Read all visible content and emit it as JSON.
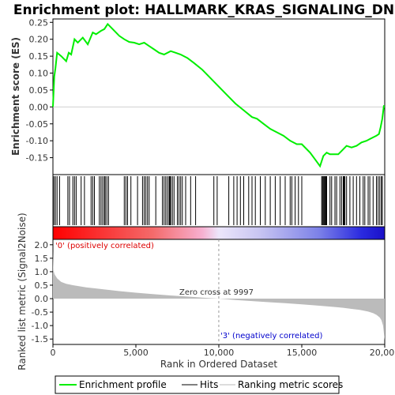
{
  "title": "Enrichment plot: HALLMARK_KRAS_SIGNALING_DN",
  "colors": {
    "es_line": "#00ee00",
    "hits": "#000000",
    "metric_fill": "#bbbbbb",
    "pos_label": "#dd0000",
    "neg_label": "#0000cc",
    "zero_line": "#999999"
  },
  "chart_data": [
    {
      "type": "line",
      "panel": "enrichment_profile",
      "ylabel": "Enrichment score (ES)",
      "xlim": [
        0,
        20000
      ],
      "ylim": [
        -0.2,
        0.26
      ],
      "yticks": [
        0.25,
        0.2,
        0.15,
        0.1,
        0.05,
        0.0,
        -0.05,
        -0.1,
        -0.15
      ],
      "yticklabels": [
        "0.25",
        "0.20",
        "0.15",
        "0.10",
        "0.05",
        "0.00",
        "-0.05",
        "-0.10",
        "-0.15"
      ],
      "series": [
        {
          "name": "Enrichment profile",
          "x": [
            0,
            80,
            150,
            250,
            500,
            800,
            950,
            1100,
            1300,
            1500,
            1800,
            2100,
            2400,
            2600,
            2900,
            3100,
            3300,
            3600,
            4000,
            4300,
            4600,
            4900,
            5200,
            5500,
            5800,
            6100,
            6400,
            6700,
            7100,
            7400,
            7700,
            8100,
            8500,
            9000,
            9500,
            10000,
            10500,
            11000,
            11500,
            12000,
            12300,
            12700,
            13100,
            13500,
            13900,
            14300,
            14700,
            15000,
            15500,
            15800,
            16100,
            16300,
            16500,
            16700,
            16900,
            17200,
            17500,
            17700,
            18000,
            18300,
            18600,
            18900,
            19100,
            19300,
            19500,
            19650,
            19750,
            19850,
            19950
          ],
          "y": [
            0.0,
            0.09,
            0.115,
            0.16,
            0.15,
            0.135,
            0.16,
            0.155,
            0.2,
            0.19,
            0.205,
            0.185,
            0.22,
            0.215,
            0.225,
            0.23,
            0.245,
            0.23,
            0.21,
            0.2,
            0.192,
            0.19,
            0.185,
            0.19,
            0.18,
            0.17,
            0.16,
            0.155,
            0.165,
            0.16,
            0.155,
            0.145,
            0.13,
            0.11,
            0.085,
            0.06,
            0.035,
            0.01,
            -0.01,
            -0.03,
            -0.035,
            -0.05,
            -0.065,
            -0.075,
            -0.085,
            -0.1,
            -0.11,
            -0.11,
            -0.135,
            -0.155,
            -0.175,
            -0.145,
            -0.135,
            -0.14,
            -0.14,
            -0.14,
            -0.125,
            -0.115,
            -0.12,
            -0.115,
            -0.105,
            -0.1,
            -0.095,
            -0.09,
            -0.085,
            -0.08,
            -0.06,
            -0.035,
            0.005
          ]
        }
      ]
    },
    {
      "type": "scatter",
      "panel": "hits",
      "series": [
        {
          "name": "Hits",
          "x": [
            60,
            150,
            250,
            400,
            900,
            1000,
            1200,
            1300,
            1400,
            1700,
            1900,
            2300,
            2400,
            2500,
            2800,
            2900,
            3000,
            3100,
            3150,
            3250,
            3350,
            4300,
            4400,
            4500,
            4700,
            5100,
            5400,
            5500,
            5600,
            5700,
            5800,
            6200,
            6600,
            6700,
            6800,
            6900,
            7000,
            7050,
            7100,
            7200,
            7300,
            7500,
            7600,
            7700,
            7800,
            8000,
            8300,
            8600,
            9700,
            9900,
            10600,
            10900,
            11100,
            11300,
            11500,
            11800,
            12000,
            12200,
            12500,
            12800,
            13100,
            13400,
            13700,
            14000,
            14300,
            14400,
            14600,
            14800,
            15000,
            16200,
            16250,
            16300,
            16350,
            16400,
            16450,
            16500,
            16700,
            16800,
            17000,
            17100,
            17300,
            17400,
            17500,
            17550,
            17600,
            17700,
            17900,
            18100,
            18300,
            18500,
            18700,
            18800,
            19000,
            19100,
            19300,
            19500,
            19600,
            19700,
            19800,
            19850
          ]
        }
      ]
    },
    {
      "type": "area",
      "panel": "ranked_list_metric",
      "ylabel": "Ranked list metric (Signal2Noise)",
      "xlabel": "Rank in Ordered Dataset",
      "xlim": [
        0,
        20000
      ],
      "ylim": [
        -1.7,
        2.2
      ],
      "xticks": [
        0,
        5000,
        10000,
        15000,
        20000
      ],
      "xticklabels": [
        "0",
        "5,000",
        "10,000",
        "15,000",
        "20,000"
      ],
      "yticks": [
        2.0,
        1.5,
        1.0,
        0.5,
        0.0,
        -0.5,
        -1.0,
        -1.5
      ],
      "yticklabels": [
        "2.0",
        "1.5",
        "1.0",
        "0.5",
        "0.0",
        "-0.5",
        "-1.0",
        "-1.5"
      ],
      "series": [
        {
          "name": "Ranking metric scores",
          "x": [
            0,
            30,
            100,
            250,
            500,
            800,
            1200,
            2000,
            3000,
            4000,
            5000,
            6000,
            7000,
            8000,
            9000,
            9997,
            11000,
            12000,
            13000,
            14000,
            15000,
            16000,
            17000,
            17500,
            18000,
            18500,
            19000,
            19300,
            19500,
            19700,
            19800,
            19900,
            19950,
            20000
          ],
          "y": [
            1.75,
            1.05,
            0.9,
            0.75,
            0.62,
            0.55,
            0.5,
            0.42,
            0.35,
            0.28,
            0.22,
            0.17,
            0.12,
            0.08,
            0.04,
            0.0,
            -0.05,
            -0.09,
            -0.13,
            -0.17,
            -0.21,
            -0.26,
            -0.31,
            -0.34,
            -0.38,
            -0.42,
            -0.48,
            -0.54,
            -0.6,
            -0.7,
            -0.8,
            -1.0,
            -1.3,
            -1.55
          ]
        }
      ],
      "annotations": {
        "zero_cross": "Zero cross at 9997",
        "pos_label": "'0' (positively correlated)",
        "neg_label": "'3' (negatively correlated)"
      }
    }
  ],
  "legend": [
    {
      "label": "Enrichment profile"
    },
    {
      "label": "Hits"
    },
    {
      "label": "Ranking metric scores"
    }
  ]
}
